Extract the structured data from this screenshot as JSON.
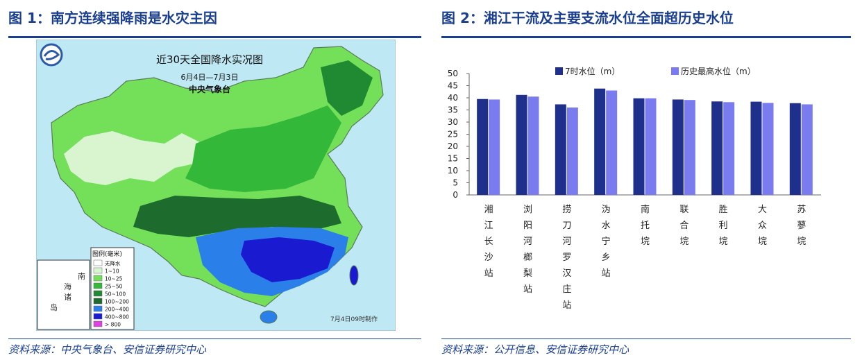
{
  "left": {
    "title": "图 1：南方连续强降雨是水灾主因",
    "source": "资料来源：中央气象台、安信证券研究中心",
    "map": {
      "title": "近30天全国降水实况图",
      "date_range": "6月4日—7月3日",
      "agency": "中央气象台",
      "footer": "7月4日09时制作",
      "inset_labels": [
        "南",
        "海",
        "诸",
        "岛"
      ],
      "legend_title": "图例(毫米)",
      "legend": [
        {
          "label": "无降水",
          "color": "#ffffff"
        },
        {
          "label": "1~10",
          "color": "#d8f5d0"
        },
        {
          "label": "10~25",
          "color": "#74e05a"
        },
        {
          "label": "25~50",
          "color": "#33b83a"
        },
        {
          "label": "50~100",
          "color": "#1f8a32"
        },
        {
          "label": "100~200",
          "color": "#1d6b2d"
        },
        {
          "label": "200~400",
          "color": "#2a7fe8"
        },
        {
          "label": "400~800",
          "color": "#1a1ad0"
        },
        {
          "label": "> 800",
          "color": "#e040e0"
        }
      ]
    }
  },
  "right": {
    "title": "图 2：湘江干流及主要支流水位全面超历史水位",
    "source": "资料来源：公开信息、安信证券研究中心"
  },
  "chart_data": {
    "type": "bar",
    "categories": [
      "湘江长沙站",
      "浏阳河榔梨站",
      "捞刀河罗汉庄站",
      "沩水宁乡站",
      "南托垸",
      "联合垸",
      "胜利垸",
      "大众垸",
      "苏蓼垸"
    ],
    "series": [
      {
        "name": "7时水位（m）",
        "color": "#1f2f8c",
        "values": [
          39.5,
          41.2,
          37.3,
          43.8,
          39.8,
          39.3,
          38.5,
          38.4,
          37.8
        ]
      },
      {
        "name": "历史最高水位（m）",
        "color": "#7b7bf0",
        "values": [
          39.3,
          40.5,
          36.0,
          43.0,
          39.8,
          39.1,
          38.2,
          37.9,
          37.3
        ]
      }
    ],
    "ylim": [
      0,
      50
    ],
    "yticks": [
      0,
      5,
      10,
      15,
      20,
      25,
      30,
      35,
      40,
      45,
      50
    ],
    "legend_position": "top",
    "grid": false
  }
}
